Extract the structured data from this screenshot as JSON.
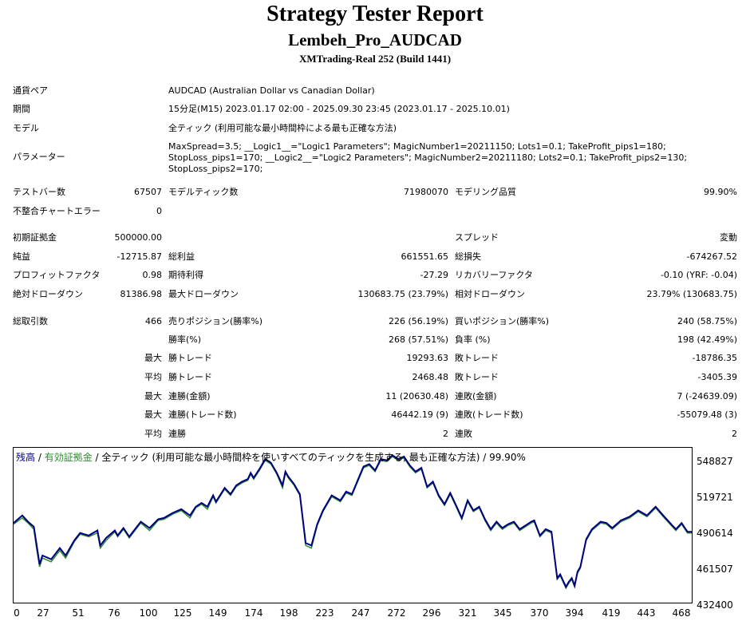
{
  "header": {
    "title": "Strategy Tester Report",
    "expert": "Lembeh_Pro_AUDCAD",
    "server": "XMTrading-Real 252 (Build 1441)"
  },
  "info": {
    "symbol_label": "通貨ペア",
    "symbol_value": "AUDCAD (Australian Dollar vs Canadian Dollar)",
    "period_label": "期間",
    "period_value": "15分足(M15) 2023.01.17 02:00 - 2025.09.30 23:45 (2023.01.17 - 2025.10.01)",
    "model_label": "モデル",
    "model_value": "全ティック (利用可能な最小時間枠による最も正確な方法)",
    "params_label": "パラメーター",
    "params_line1": "MaxSpread=3.5; __Logic1__=\"Logic1 Parameters\"; MagicNumber1=20211150; Lots1=0.1; TakeProfit_pips1=180;",
    "params_line2": "StopLoss_pips1=170; __Logic2__=\"Logic2 Parameters\"; MagicNumber2=20211180; Lots2=0.1; TakeProfit_pips2=130;",
    "params_line3": "StopLoss_pips2=170;"
  },
  "stats": {
    "bars_label": "テストバー数",
    "bars_value": "67507",
    "ticks_label": "モデルティック数",
    "ticks_value": "71980070",
    "quality_label": "モデリング品質",
    "quality_value": "99.90%",
    "mismatch_label": "不整合チャートエラー",
    "mismatch_value": "0",
    "deposit_label": "初期証拠金",
    "deposit_value": "500000.00",
    "spread_label": "スプレッド",
    "spread_value": "変動",
    "net_label": "純益",
    "net_value": "-12715.87",
    "gross_profit_label": "総利益",
    "gross_profit_value": "661551.65",
    "gross_loss_label": "総損失",
    "gross_loss_value": "-674267.52",
    "pf_label": "プロフィットファクタ",
    "pf_value": "0.98",
    "expected_label": "期待利得",
    "expected_value": "-27.29",
    "recovery_label": "リカバリーファクタ",
    "recovery_value": "-0.10 (YRF: -0.04)",
    "abs_dd_label": "絶対ドローダウン",
    "abs_dd_value": "81386.98",
    "max_dd_label": "最大ドローダウン",
    "max_dd_value": "130683.75 (23.79%)",
    "rel_dd_label": "相対ドローダウン",
    "rel_dd_value": "23.79% (130683.75)",
    "trades_label": "総取引数",
    "trades_value": "466",
    "short_label": "売りポジション(勝率%)",
    "short_value": "226 (56.19%)",
    "long_label": "買いポジション(勝率%)",
    "long_value": "240 (58.75%)",
    "win_pct_label": "勝率(%)",
    "win_pct_value": "268 (57.51%)",
    "loss_pct_label": "負率 (%)",
    "loss_pct_value": "198 (42.49%)",
    "max_prefix": "最大",
    "avg_prefix": "平均",
    "largest_win_label": "勝トレード",
    "largest_win_value": "19293.63",
    "largest_loss_label": "敗トレード",
    "largest_loss_value": "-18786.35",
    "avg_win_label": "勝トレード",
    "avg_win_value": "2468.48",
    "avg_loss_label": "敗トレード",
    "avg_loss_value": "-3405.39",
    "cons_wins_money_label": "連勝(金額)",
    "cons_wins_money_value": "11 (20630.48)",
    "cons_losses_money_label": "連敗(金額)",
    "cons_losses_money_value": "7 (-24639.09)",
    "cons_wins_count_label": "連勝(トレード数)",
    "cons_wins_count_value": "46442.19 (9)",
    "cons_losses_count_label": "連敗(トレード数)",
    "cons_losses_count_value": "-55079.48 (3)",
    "avg_cons_wins_label": "連勝",
    "avg_cons_wins_value": "2",
    "avg_cons_losses_label": "連敗",
    "avg_cons_losses_value": "2"
  },
  "chart_legend": {
    "balance": "残高",
    "sep1": " / ",
    "equity": "有効証拠金",
    "rest": " / 全ティック (利用可能な最小時間枠を使いすべてのティックを生成する, 最も正確な方法) / 99.90%"
  },
  "chart_data": {
    "type": "line",
    "colors": {
      "balance": "#000080",
      "equity": "#2e8b2e"
    },
    "yticks": [
      "548827",
      "519721",
      "490614",
      "461507",
      "432400"
    ],
    "xticks": [
      "0",
      "27",
      "51",
      "76",
      "100",
      "125",
      "149",
      "174",
      "198",
      "223",
      "247",
      "272",
      "296",
      "321",
      "345",
      "370",
      "394",
      "419",
      "443",
      "468"
    ],
    "ylim": [
      432400,
      556000
    ],
    "xlim": [
      0,
      469
    ],
    "series": [
      {
        "x": [
          0,
          6,
          10,
          14,
          16,
          18,
          20,
          26,
          32,
          36,
          42,
          46,
          52,
          58,
          60,
          64,
          70,
          72,
          76,
          80,
          84,
          88,
          94,
          100,
          104,
          110,
          116,
          122,
          126,
          130,
          134,
          138,
          140,
          146,
          150,
          154,
          158,
          162,
          164,
          166,
          170,
          174,
          178,
          182,
          186,
          188,
          190,
          194,
          198,
          202,
          206,
          210,
          214,
          220,
          226,
          230,
          234,
          238,
          242,
          246,
          250,
          254,
          258,
          262,
          266,
          270,
          274,
          278,
          282,
          286,
          290,
          294,
          298,
          302,
          306,
          310,
          314,
          318,
          322,
          326,
          330,
          334,
          338,
          342,
          346,
          350,
          354,
          358,
          360,
          364,
          368,
          372,
          374,
          376,
          378,
          380,
          382,
          384,
          386,
          388,
          390,
          392,
          396,
          400,
          406,
          410,
          414,
          420,
          426,
          432,
          438,
          444,
          450,
          454,
          458,
          462,
          466,
          469
        ],
        "y": [
          496000,
          502000,
          497000,
          493000,
          478000,
          463000,
          470000,
          467000,
          476000,
          470000,
          482000,
          488000,
          486000,
          490000,
          478000,
          484000,
          490000,
          486000,
          492000,
          485000,
          491000,
          497000,
          492000,
          499000,
          500000,
          504000,
          507000,
          502000,
          509000,
          512000,
          509000,
          518000,
          513000,
          524000,
          519000,
          526000,
          529000,
          531000,
          536000,
          532000,
          539000,
          547000,
          544000,
          536000,
          526000,
          537000,
          533000,
          527000,
          519000,
          480000,
          478000,
          495000,
          506000,
          518000,
          514000,
          521000,
          519000,
          530000,
          541000,
          543000,
          538000,
          547000,
          546000,
          550000,
          547000,
          549000,
          542000,
          537000,
          540000,
          525000,
          529000,
          518000,
          511000,
          520000,
          510000,
          500000,
          514000,
          506000,
          509000,
          499000,
          491000,
          497000,
          492000,
          495000,
          497000,
          491000,
          494000,
          497000,
          498000,
          486000,
          491000,
          489000,
          470000,
          452000,
          455000,
          450000,
          445000,
          449000,
          452000,
          446000,
          457000,
          461000,
          483000,
          491000,
          497000,
          496000,
          492000,
          498000,
          501000,
          506000,
          502000,
          509000,
          501000,
          496000,
          491000,
          496000,
          489000,
          489000
        ]
      },
      {
        "x": [
          0,
          6,
          10,
          14,
          16,
          18,
          20,
          26,
          32,
          36,
          42,
          46,
          52,
          58,
          60,
          64,
          70,
          72,
          76,
          80,
          84,
          88,
          94,
          100,
          104,
          110,
          116,
          122,
          126,
          130,
          134,
          138,
          140,
          146,
          150,
          154,
          158,
          162,
          164,
          166,
          170,
          174,
          178,
          182,
          186,
          188,
          190,
          194,
          198,
          202,
          206,
          210,
          214,
          220,
          226,
          230,
          234,
          238,
          242,
          246,
          250,
          254,
          258,
          262,
          266,
          270,
          274,
          278,
          282,
          286,
          290,
          294,
          298,
          302,
          306,
          310,
          314,
          318,
          322,
          326,
          330,
          334,
          338,
          342,
          346,
          350,
          354,
          358,
          360,
          364,
          368,
          372,
          374,
          376,
          378,
          380,
          382,
          384,
          386,
          388,
          390,
          392,
          396,
          400,
          406,
          410,
          414,
          420,
          426,
          432,
          438,
          444,
          450,
          454,
          458,
          462,
          466,
          469
        ],
        "y": [
          495000,
          500000,
          496000,
          491000,
          475000,
          461000,
          468000,
          465000,
          474000,
          468000,
          481000,
          487000,
          485000,
          488000,
          476000,
          482000,
          489000,
          485000,
          491000,
          484000,
          490000,
          496000,
          490000,
          498000,
          499000,
          503000,
          506000,
          500000,
          508000,
          511000,
          507000,
          517000,
          512000,
          523000,
          518000,
          525000,
          528000,
          530000,
          535000,
          531000,
          538000,
          546000,
          543000,
          535000,
          524000,
          536000,
          532000,
          526000,
          518000,
          478000,
          476000,
          494000,
          505000,
          517000,
          513000,
          520000,
          518000,
          529000,
          540000,
          542000,
          537000,
          546000,
          545000,
          549000,
          546000,
          548000,
          541000,
          536000,
          539000,
          524000,
          528000,
          517000,
          510000,
          519000,
          509000,
          499000,
          513000,
          505000,
          508000,
          498000,
          490000,
          496000,
          491000,
          494000,
          496000,
          490000,
          493000,
          496000,
          497000,
          485000,
          490000,
          488000,
          469000,
          451000,
          454000,
          449000,
          444000,
          448000,
          451000,
          445000,
          456000,
          460000,
          482000,
          490000,
          496000,
          495000,
          491000,
          497000,
          500000,
          505000,
          501000,
          508000,
          500000,
          495000,
          490000,
          495000,
          488000,
          488000
        ]
      }
    ]
  }
}
